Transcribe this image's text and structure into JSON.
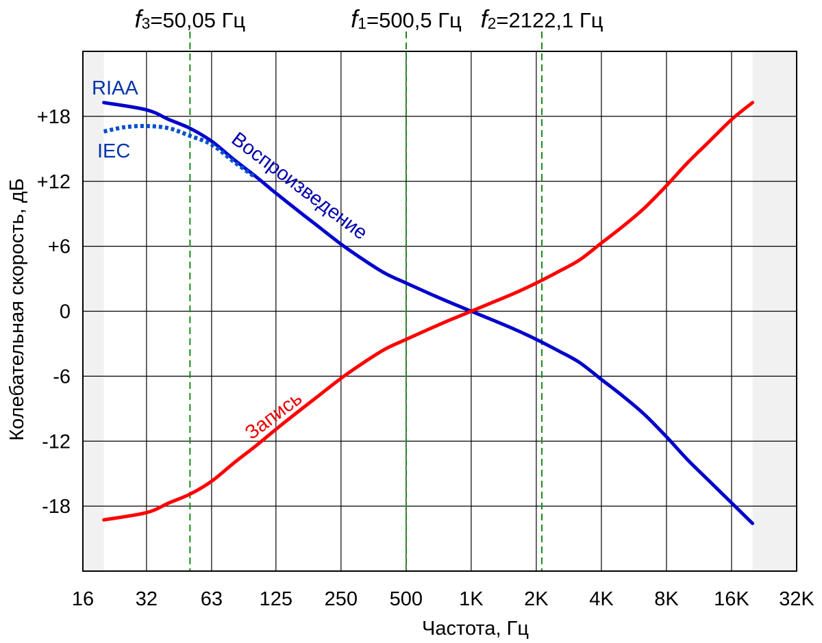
{
  "chart_data": {
    "type": "line",
    "xlabel": "Частота, Гц",
    "ylabel": "Колебательная скорость, дБ",
    "x_scale": "log2",
    "xlim": [
      16,
      32000
    ],
    "ylim": [
      -24,
      24
    ],
    "x_ticks": [
      {
        "value": 16,
        "label": "16"
      },
      {
        "value": 31.5,
        "label": "32"
      },
      {
        "value": 63,
        "label": "63"
      },
      {
        "value": 125,
        "label": "125"
      },
      {
        "value": 250,
        "label": "250"
      },
      {
        "value": 500,
        "label": "500"
      },
      {
        "value": 1000,
        "label": "1K"
      },
      {
        "value": 2000,
        "label": "2K"
      },
      {
        "value": 4000,
        "label": "4K"
      },
      {
        "value": 8000,
        "label": "8K"
      },
      {
        "value": 16000,
        "label": "16K"
      },
      {
        "value": 32000,
        "label": "32K"
      }
    ],
    "y_ticks": [
      {
        "value": 18,
        "label": "+18"
      },
      {
        "value": 12,
        "label": "+12"
      },
      {
        "value": 6,
        "label": "+6"
      },
      {
        "value": 0,
        "label": "0"
      },
      {
        "value": -6,
        "label": "-6"
      },
      {
        "value": -12,
        "label": "-12"
      },
      {
        "value": -18,
        "label": "-18"
      }
    ],
    "shaded_ranges": [
      [
        16,
        20
      ],
      [
        20000,
        32000
      ]
    ],
    "grid": true,
    "reference_lines": [
      {
        "italic": "f",
        "sub": "3",
        "text": "=50,05 Гц",
        "x": 50.05
      },
      {
        "italic": "f",
        "sub": "1",
        "text": "=500,5 Гц",
        "x": 500.5
      },
      {
        "italic": "f",
        "sub": "2",
        "text": "=2122,1 Гц",
        "x": 2122.1
      }
    ],
    "series": [
      {
        "name": "Воспроизведение",
        "color": "#0000cc",
        "style": "solid",
        "points": [
          [
            20,
            19.27
          ],
          [
            31.5,
            18.6
          ],
          [
            40,
            17.7
          ],
          [
            50,
            16.9
          ],
          [
            63,
            15.7
          ],
          [
            80,
            14.0
          ],
          [
            100,
            12.5
          ],
          [
            125,
            10.9
          ],
          [
            160,
            9.2
          ],
          [
            200,
            7.7
          ],
          [
            250,
            6.2
          ],
          [
            315,
            4.8
          ],
          [
            400,
            3.5
          ],
          [
            500,
            2.6
          ],
          [
            630,
            1.7
          ],
          [
            800,
            0.8
          ],
          [
            1000,
            0
          ],
          [
            1250,
            -0.8
          ],
          [
            1600,
            -1.7
          ],
          [
            2000,
            -2.6
          ],
          [
            2500,
            -3.6
          ],
          [
            3150,
            -4.7
          ],
          [
            4000,
            -6.3
          ],
          [
            5000,
            -7.8
          ],
          [
            6300,
            -9.5
          ],
          [
            8000,
            -11.6
          ],
          [
            10000,
            -13.7
          ],
          [
            12500,
            -15.6
          ],
          [
            16000,
            -17.7
          ],
          [
            20000,
            -19.6
          ]
        ]
      },
      {
        "name": "IEC",
        "color": "#0050cc",
        "style": "dotted",
        "points": [
          [
            20,
            16.6
          ],
          [
            25,
            17.0
          ],
          [
            31.5,
            17.1
          ],
          [
            40,
            16.9
          ],
          [
            50,
            16.2
          ],
          [
            63,
            15.4
          ],
          [
            80,
            13.8
          ],
          [
            100,
            12.4
          ]
        ]
      },
      {
        "name": "Запись",
        "color": "#ff0000",
        "style": "solid",
        "points": [
          [
            20,
            -19.27
          ],
          [
            31.5,
            -18.6
          ],
          [
            40,
            -17.7
          ],
          [
            50,
            -16.9
          ],
          [
            63,
            -15.7
          ],
          [
            80,
            -14.0
          ],
          [
            100,
            -12.5
          ],
          [
            125,
            -10.9
          ],
          [
            160,
            -9.2
          ],
          [
            200,
            -7.7
          ],
          [
            250,
            -6.2
          ],
          [
            315,
            -4.8
          ],
          [
            400,
            -3.5
          ],
          [
            500,
            -2.6
          ],
          [
            630,
            -1.7
          ],
          [
            800,
            -0.8
          ],
          [
            1000,
            0
          ],
          [
            1250,
            0.8
          ],
          [
            1600,
            1.7
          ],
          [
            2000,
            2.6
          ],
          [
            2500,
            3.6
          ],
          [
            3150,
            4.7
          ],
          [
            4000,
            6.3
          ],
          [
            5000,
            7.8
          ],
          [
            6300,
            9.5
          ],
          [
            8000,
            11.6
          ],
          [
            10000,
            13.7
          ],
          [
            12500,
            15.6
          ],
          [
            16000,
            17.7
          ],
          [
            20000,
            19.27
          ]
        ]
      }
    ],
    "annotations": [
      {
        "text": "RIAA",
        "color": "#0033aa"
      },
      {
        "text": "IEC",
        "color": "#0033aa"
      },
      {
        "text": "Воспроизведение",
        "color": "#0000aa"
      },
      {
        "text": "Запись",
        "color": "#ee0000"
      }
    ]
  }
}
